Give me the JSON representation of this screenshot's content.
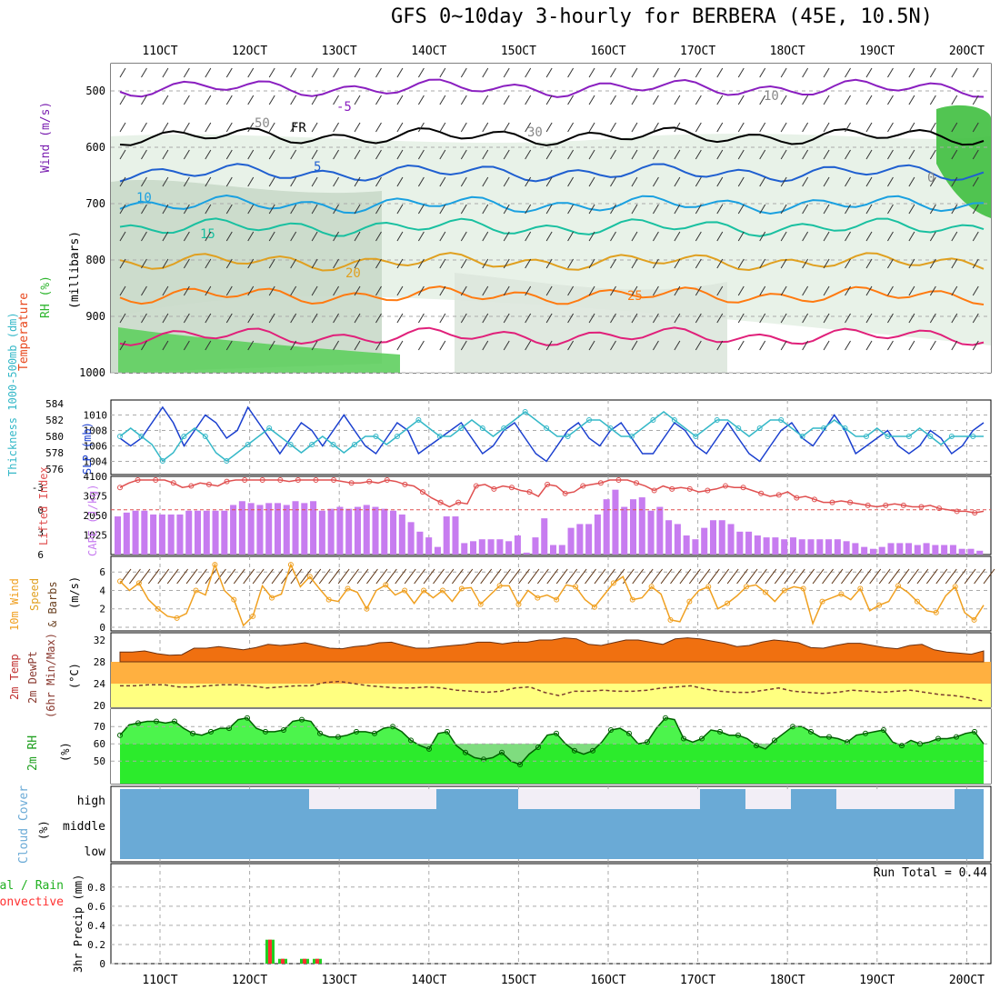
{
  "title": "GFS 0~10day 3-hourly for BERBERA (45E, 10.5N)",
  "date_ticks": [
    "11OCT",
    "12OCT",
    "13OCT",
    "14OCT",
    "15OCT",
    "16OCT",
    "17OCT",
    "18OCT",
    "19OCT",
    "20OCT"
  ],
  "colors": {
    "temp_label": "#e8471c",
    "wind_label": "#7a1fb0",
    "rh_fill": "#2db52d",
    "slp": "#1a3fcf",
    "thickness": "#35b8c8",
    "lifted": "#e05050",
    "cape": "#c77cf0",
    "wind10": "#f0a020",
    "temp_fill": "#f07010",
    "mid_fill": "#ffb040",
    "dew_fill": "#ffff80",
    "rh2m": "#10f010",
    "cloud": "#6aaad6",
    "precip": "#20d020",
    "convective": "#ff3030"
  },
  "panels": {
    "upper": {
      "ylabel_rh": "RH (%)",
      "ylabel_temp": "Temperature (°C)",
      "ylabel_wind": "Wind (m/s)",
      "ylabel_mb": "(millibars)",
      "levels": [
        "500",
        "600",
        "700",
        "800",
        "900",
        "1000"
      ],
      "contour_labels": [
        "-5",
        "5",
        "10",
        "15",
        "20",
        "25",
        "FR",
        "50",
        "30",
        "10",
        "0"
      ]
    },
    "slp": {
      "ylabel_left": "Thickness 1000-500mb (dm)",
      "ylabel_right": "SLP (mb)",
      "left_ticks": [
        "584",
        "582",
        "580",
        "578",
        "576"
      ],
      "right_ticks": [
        "1010",
        "1008",
        "1006",
        "1004"
      ]
    },
    "cape": {
      "ylabel_left": "Lifted Index",
      "ylabel_right": "CAPE (J/kg)",
      "left_ticks": [
        "-3",
        "0",
        "3",
        "6"
      ],
      "right_ticks": [
        "4100",
        "3075",
        "2050",
        "1025"
      ]
    },
    "wind10": {
      "ylabel": "10m Wind Speed & Barbs",
      "unit": "(m/s)",
      "ticks": [
        "6",
        "4",
        "2",
        "0"
      ]
    },
    "temp2m": {
      "ylabel1": "2m Temp",
      "ylabel2": "2m DewPt",
      "ylabel3": "(6hr Min/Max)",
      "unit": "(°C)",
      "ticks": [
        "32",
        "28",
        "24",
        "20"
      ]
    },
    "rh2m": {
      "ylabel": "2m RH",
      "unit": "(%)",
      "ticks": [
        "70",
        "60",
        "50"
      ]
    },
    "cloud": {
      "ylabel": "Cloud Cover",
      "unit": "(%)",
      "levels": [
        "high",
        "middle",
        "low"
      ]
    },
    "precip": {
      "ylabel1": "Total / Rain",
      "ylabel2": "Convective",
      "ylabel3": "3hr Precip (mm)",
      "ticks": [
        "0.8",
        "0.6",
        "0.4",
        "0.2",
        "0"
      ],
      "run_total": "Run Total = 0.44"
    }
  },
  "chart_data": [
    {
      "type": "line",
      "name": "SLP (mb)",
      "x_unit": "3-hourly steps from 10OCT 12Z",
      "values": [
        1007,
        1006,
        1007,
        1009,
        1011,
        1009,
        1006,
        1008,
        1010,
        1009,
        1007,
        1008,
        1011,
        1009,
        1007,
        1005,
        1007,
        1009,
        1008,
        1006,
        1008,
        1010,
        1008,
        1006,
        1005,
        1007,
        1009,
        1008,
        1005,
        1006,
        1007,
        1008,
        1009,
        1007,
        1005,
        1006,
        1008,
        1009,
        1007,
        1005,
        1004,
        1006,
        1008,
        1009,
        1007,
        1006,
        1008,
        1009,
        1007,
        1005,
        1005,
        1007,
        1009,
        1008,
        1006,
        1005,
        1007,
        1009,
        1007,
        1005,
        1004,
        1006,
        1008,
        1009,
        1007,
        1006,
        1008,
        1010,
        1008,
        1005,
        1006,
        1007,
        1008,
        1006,
        1005,
        1006,
        1008,
        1007,
        1005,
        1006,
        1008,
        1009
      ]
    },
    {
      "type": "line",
      "name": "Thickness 1000-500mb (dm)",
      "values": [
        580,
        581,
        580,
        579,
        577,
        578,
        580,
        581,
        580,
        578,
        577,
        578,
        579,
        580,
        581,
        580,
        579,
        578,
        579,
        580,
        579,
        578,
        579,
        580,
        580,
        579,
        580,
        581,
        582,
        581,
        580,
        580,
        581,
        582,
        581,
        580,
        581,
        582,
        583,
        582,
        581,
        580,
        580,
        581,
        582,
        582,
        581,
        580,
        580,
        581,
        582,
        583,
        582,
        581,
        580,
        581,
        582,
        582,
        581,
        580,
        581,
        582,
        582,
        581,
        580,
        581,
        581,
        582,
        581,
        580,
        580,
        581,
        580,
        580,
        580,
        581,
        580,
        579,
        580,
        580,
        580,
        580
      ]
    },
    {
      "type": "bar",
      "name": "CAPE (J/kg)",
      "values": [
        2000,
        2200,
        2300,
        2300,
        2100,
        2100,
        2100,
        2100,
        2300,
        2300,
        2300,
        2300,
        2300,
        2600,
        2800,
        2700,
        2600,
        2700,
        2700,
        2600,
        2800,
        2700,
        2800,
        2300,
        2400,
        2500,
        2400,
        2500,
        2600,
        2500,
        2400,
        2300,
        2100,
        1700,
        1200,
        900,
        400,
        2000,
        2000,
        600,
        700,
        800,
        800,
        800,
        700,
        1000,
        100,
        900,
        1900,
        500,
        500,
        1400,
        1600,
        1600,
        2100,
        2900,
        3400,
        2500,
        2900,
        3000,
        2300,
        2500,
        1800,
        1600,
        1000,
        800,
        1400,
        1800,
        1800,
        1600,
        1200,
        1200,
        1000,
        900,
        900,
        800,
        900,
        800,
        800,
        800,
        800,
        800,
        700,
        600,
        400,
        300,
        400,
        600,
        600,
        600,
        500,
        600,
        500,
        500,
        500,
        300,
        300,
        200
      ]
    },
    {
      "type": "line",
      "name": "Lifted Index",
      "values": [
        -3,
        -3.6,
        -4,
        -4,
        -4,
        -4,
        -3.6,
        -3,
        -3.2,
        -3.6,
        -3.4,
        -3.2,
        -3.8,
        -4,
        -4,
        -4,
        -4,
        -4,
        -4,
        -3.8,
        -4,
        -4,
        -4,
        -4,
        -4,
        -3.8,
        -3.6,
        -3.6,
        -3.8,
        -3.6,
        -4,
        -3.8,
        -3.4,
        -3.2,
        -2.4,
        -1.6,
        -1,
        -0.4,
        -1,
        -0.8,
        -3.2,
        -3.4,
        -2.8,
        -3.2,
        -3,
        -2.6,
        -2.4,
        -1.8,
        -3.4,
        -3.2,
        -2.2,
        -2.4,
        -3.2,
        -3.4,
        -3.6,
        -4,
        -4,
        -4,
        -3.6,
        -3.2,
        -2.6,
        -3.2,
        -2.8,
        -3,
        -2.8,
        -2.4,
        -2.6,
        -2.8,
        -3.2,
        -3,
        -3,
        -2.6,
        -2.2,
        -1.8,
        -2,
        -2.4,
        -1.6,
        -1.8,
        -1.4,
        -1,
        -1,
        -1.2,
        -1,
        -0.8,
        -0.6,
        -0.4,
        -0.6,
        -0.8,
        -0.6,
        -0.4,
        -0.4,
        -0.6,
        -0.2,
        0,
        0.2,
        0.2,
        0.4,
        0.2
      ]
    },
    {
      "type": "line",
      "name": "10m Wind Speed (m/s)",
      "values": [
        5,
        4,
        4.8,
        3,
        2,
        1.2,
        1,
        1.5,
        4,
        3.5,
        6.8,
        4,
        3,
        0.2,
        1.2,
        4.5,
        3.2,
        3.6,
        6.8,
        4.4,
        5.5,
        4.2,
        3,
        2.8,
        4.2,
        3.8,
        2,
        4,
        4.6,
        3.5,
        4,
        2.6,
        4,
        3.2,
        4,
        2.8,
        4.2,
        4.3,
        2.5,
        3.5,
        4.5,
        4.5,
        2.5,
        4,
        3.2,
        3.5,
        3,
        4.6,
        4.4,
        3,
        2.2,
        3.5,
        4.8,
        5.5,
        3,
        3.2,
        4.4,
        3.6,
        0.8,
        0.6,
        2.8,
        4,
        4.4,
        2,
        2.6,
        3.4,
        4.4,
        4.6,
        3.8,
        2.8,
        4,
        4.4,
        4.2,
        0.4,
        2.8,
        3.2,
        3.6,
        3,
        4.2,
        1.8,
        2.4,
        2.8,
        4.5,
        3.8,
        2.8,
        1.8,
        1.6,
        3.4,
        4.4,
        1.6,
        0.8,
        2.4
      ]
    },
    {
      "type": "area",
      "name": "2m Temp (°C)",
      "values": [
        29.8,
        29.8,
        30,
        29.5,
        29.2,
        29.3,
        30.5,
        30.5,
        30.8,
        30.5,
        30.2,
        30.6,
        31.2,
        31,
        31.2,
        31.5,
        31,
        30.5,
        30.4,
        30.8,
        31,
        31.5,
        31.6,
        31,
        30.5,
        30.5,
        30.8,
        31,
        31.2,
        31.6,
        31.6,
        31.3,
        31.6,
        31.6,
        32,
        32,
        32.4,
        32.2,
        31.2,
        31,
        31.5,
        32,
        32,
        31.6,
        31.2,
        32.2,
        32.4,
        32.2,
        31.8,
        31.4,
        30.8,
        31,
        31.6,
        32,
        31.8,
        31.5,
        30.6,
        30.5,
        31,
        31.4,
        31.4,
        31,
        30.6,
        30.4,
        31,
        31.2,
        30.2,
        29.8,
        29.6,
        29.4,
        30
      ]
    },
    {
      "type": "line",
      "name": "2m DewPt (°C)",
      "values": [
        23.6,
        23.6,
        23.8,
        23.8,
        23.4,
        23.4,
        23.6,
        23.8,
        23.8,
        23.6,
        23.2,
        23.4,
        23.6,
        23.6,
        24.2,
        24.4,
        24,
        23.6,
        23.4,
        23.2,
        23.2,
        23.4,
        23.2,
        22.8,
        22.6,
        22.4,
        22.6,
        23.2,
        23.4,
        22.4,
        21.8,
        22.6,
        22.6,
        22.8,
        22.6,
        22.6,
        22.8,
        23.2,
        23.4,
        23.6,
        23,
        22.6,
        22.4,
        22.4,
        22.8,
        23.2,
        22.6,
        22.4,
        22.2,
        22.4,
        22.8,
        22.6,
        22.4,
        22.6,
        22.8,
        22.4,
        22,
        21.8,
        21.4,
        20.8
      ]
    },
    {
      "type": "area",
      "name": "2m RH (%)",
      "values": [
        65,
        71,
        72,
        73,
        73,
        72,
        73,
        69,
        66,
        65,
        67,
        69,
        69,
        74,
        75,
        69,
        67,
        67,
        68,
        73,
        74,
        73,
        66,
        64,
        64,
        65,
        67,
        67,
        66,
        69,
        70,
        67,
        62,
        59,
        57,
        66,
        67,
        59,
        55,
        52,
        51,
        52,
        55,
        50,
        48,
        54,
        58,
        65,
        66,
        60,
        56,
        54,
        56,
        61,
        68,
        69,
        66,
        60,
        61,
        69,
        75,
        74,
        63,
        61,
        63,
        68,
        67,
        65,
        65,
        63,
        59,
        57,
        62,
        66,
        70,
        70,
        67,
        64,
        64,
        63,
        61,
        65,
        66,
        67,
        68,
        61,
        59,
        62,
        60,
        61,
        63,
        63,
        64,
        66,
        67,
        60
      ]
    },
    {
      "type": "bar",
      "name": "Total / Rain",
      "categories": [
        "12OCT 06Z",
        "12OCT 12Z",
        "12OCT 18Z",
        "13OCT 00Z"
      ],
      "values": [
        0.25,
        0.05,
        0.05,
        0.05
      ]
    },
    {
      "type": "bar",
      "name": "Convective",
      "categories": [
        "12OCT 06Z",
        "12OCT 12Z",
        "12OCT 18Z",
        "13OCT 00Z"
      ],
      "values": [
        0.25,
        0.05,
        0.05,
        0.05
      ]
    }
  ]
}
